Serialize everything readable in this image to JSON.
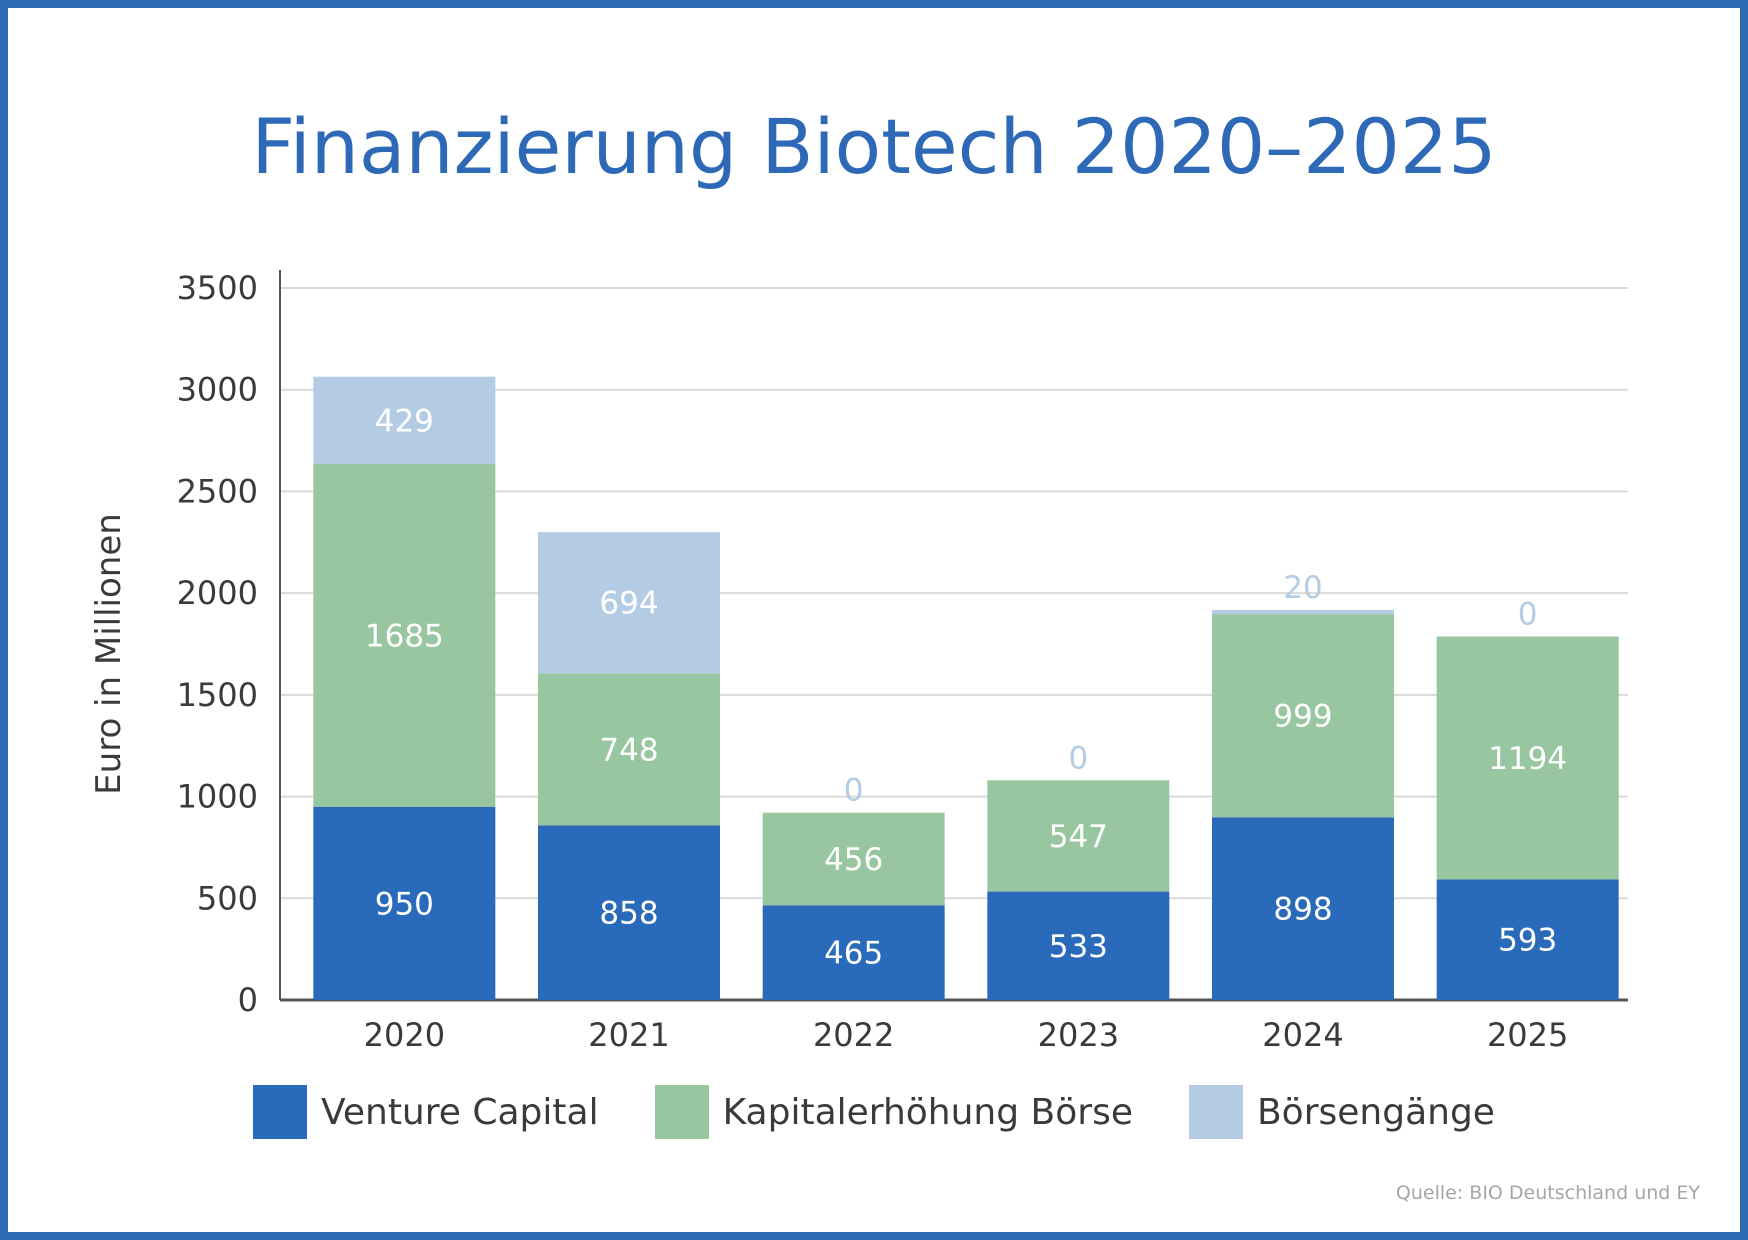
{
  "title": "Finanzierung Biotech 2020–2025",
  "source": "Quelle: BIO Deutschland und EY",
  "chart_data": {
    "type": "bar",
    "stacked": true,
    "title": "Finanzierung Biotech 2020–2025",
    "xlabel": "",
    "ylabel": "Euro in Millionen",
    "ylim": [
      0,
      3500
    ],
    "yticks": [
      0,
      500,
      1000,
      1500,
      2000,
      2500,
      3000,
      3500
    ],
    "grid": true,
    "legend_position": "bottom",
    "categories": [
      "2020",
      "2021",
      "2022",
      "2023",
      "2024",
      "2025"
    ],
    "series": [
      {
        "name": "Venture Capital",
        "color": "#2a6aba",
        "values": [
          950,
          858,
          465,
          533,
          898,
          593
        ]
      },
      {
        "name": "Kapitalerhöhung Börse",
        "color": "#98c6a0",
        "values": [
          1685,
          748,
          456,
          547,
          999,
          1194
        ]
      },
      {
        "name": "Börsengänge",
        "color": "#b3cce3",
        "values": [
          429,
          694,
          0,
          0,
          20,
          0
        ]
      }
    ]
  }
}
